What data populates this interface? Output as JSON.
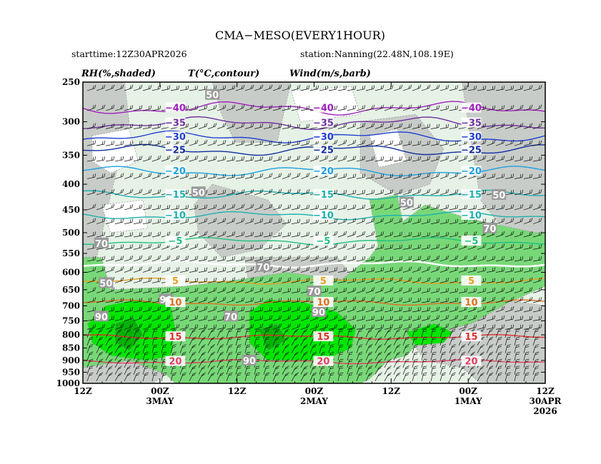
{
  "chart_data": {
    "type": "heatmap",
    "title": "CMA−MESO(EVERY1HOUR)",
    "starttime": "starttime:12Z30APR2026",
    "station": "station:Nanning(22.48N,108.19E)",
    "legend": [
      "RH(%,shaded)",
      "T(°C,contour)",
      "Wind(m/s,barb)"
    ],
    "ylabel": "",
    "xlabel": "",
    "y_scale": "log",
    "ylim": [
      1000,
      250
    ],
    "y_ticks": [
      250,
      300,
      350,
      400,
      450,
      500,
      550,
      600,
      650,
      700,
      750,
      800,
      850,
      900,
      950,
      1000
    ],
    "x_direction": "time decreases to the right",
    "x_ticks": [
      {
        "label": "12Z",
        "sub": "",
        "year": ""
      },
      {
        "label": "00Z",
        "sub": "3MAY",
        "year": ""
      },
      {
        "label": "12Z",
        "sub": "",
        "year": ""
      },
      {
        "label": "00Z",
        "sub": "2MAY",
        "year": ""
      },
      {
        "label": "12Z",
        "sub": "",
        "year": ""
      },
      {
        "label": "00Z",
        "sub": "1MAY",
        "year": ""
      },
      {
        "label": "12Z",
        "sub": "30APR",
        "year": "2026"
      }
    ],
    "x_hours_before_end": [
      72,
      60,
      48,
      36,
      24,
      12,
      0
    ],
    "temperature_contours": [
      {
        "value": -40,
        "label": "−40",
        "color": "#a020c0",
        "p": 282
      },
      {
        "value": -35,
        "label": "−35",
        "color": "#7030a0",
        "p": 302
      },
      {
        "value": -30,
        "label": "−30",
        "color": "#2040d0",
        "p": 322
      },
      {
        "value": -25,
        "label": "−25",
        "color": "#1030a0",
        "p": 342
      },
      {
        "value": -20,
        "label": "−20",
        "color": "#20a0e0",
        "p": 377
      },
      {
        "value": -15,
        "label": "−15",
        "color": "#20b0b0",
        "p": 420
      },
      {
        "value": -10,
        "label": "−10",
        "color": "#20b0b0",
        "p": 462
      },
      {
        "value": -5,
        "label": "−5",
        "color": "#20c080",
        "p": 520
      },
      {
        "value": 0,
        "label": "",
        "color": "#ffffff",
        "p": 578
      },
      {
        "value": 5,
        "label": "5",
        "color": "#e8a020",
        "p": 625
      },
      {
        "value": 10,
        "label": "10",
        "color": "#e07020",
        "p": 690
      },
      {
        "value": 15,
        "label": "15",
        "color": "#e03030",
        "p": 808
      },
      {
        "value": 20,
        "label": "20",
        "color": "#e04060",
        "p": 905
      }
    ],
    "rh_labels": [
      "50",
      "70",
      "90"
    ],
    "rh_colors": {
      "lt50": "#ffffff",
      "50": "#c8ccc8",
      "70": "#e6f2e6",
      "80": "#78d878",
      "90": "#00e600",
      "95": "#00b400"
    }
  }
}
